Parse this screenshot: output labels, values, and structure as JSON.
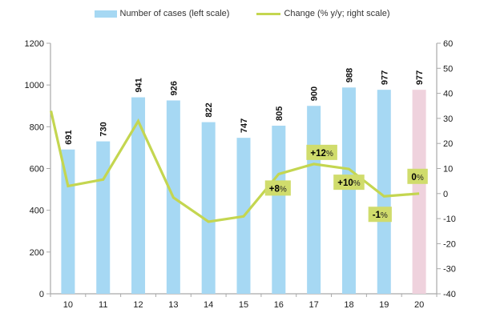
{
  "chart_data": {
    "type": "bar",
    "title": "",
    "categories": [
      "10",
      "11",
      "12",
      "13",
      "14",
      "15",
      "16",
      "17",
      "18",
      "19",
      "20"
    ],
    "series": [
      {
        "name": "Number of cases (left scale)",
        "type": "bar",
        "axis": "left",
        "values": [
          691,
          730,
          941,
          926,
          822,
          747,
          805,
          900,
          988,
          977,
          977
        ]
      },
      {
        "name": "Change (% y/y; right scale)",
        "type": "line",
        "axis": "right",
        "values": [
          3,
          5.6,
          28.9,
          -1.6,
          -11.2,
          -9.1,
          7.8,
          11.8,
          9.8,
          -1.1,
          0
        ],
        "edge_start_value": 33
      }
    ],
    "bar_value_labels": [
      "691",
      "730",
      "941",
      "926",
      "822",
      "747",
      "805",
      "900",
      "988",
      "977",
      "977"
    ],
    "highlight_last_bar": true,
    "annotations": [
      {
        "category": "16",
        "text": "+8%",
        "placement": "below",
        "dx": -1,
        "gap": 8
      },
      {
        "category": "17",
        "text": "+12%",
        "placement": "above",
        "dx": 10,
        "gap": 5
      },
      {
        "category": "18",
        "text": "+10%",
        "placement": "below",
        "dx": 0,
        "gap": 7
      },
      {
        "category": "19",
        "text": "-1%",
        "placement": "below",
        "dx": -5,
        "gap": 13
      },
      {
        "category": "20",
        "text": "0%",
        "placement": "above",
        "dx": -2,
        "gap": 12
      }
    ],
    "left_axis": {
      "min": 0,
      "max": 1200,
      "step": 200,
      "tick_labels": [
        "0",
        "200",
        "400",
        "600",
        "800",
        "1000",
        "1200"
      ]
    },
    "right_axis": {
      "min": -40,
      "max": 60,
      "step": 10,
      "tick_labels": [
        "-40",
        "-30",
        "-20",
        "-10",
        "0",
        "10",
        "20",
        "30",
        "40",
        "50",
        "60"
      ]
    },
    "legend_position": "top",
    "grid": false,
    "colors": {
      "bar": "#A6D8F3",
      "bar_highlight": "#EFD2DD",
      "line": "#C4D650",
      "annotation_bg": "#D0DC6C",
      "axis": "#A9A9A9",
      "text": "#1A1A1A"
    }
  }
}
